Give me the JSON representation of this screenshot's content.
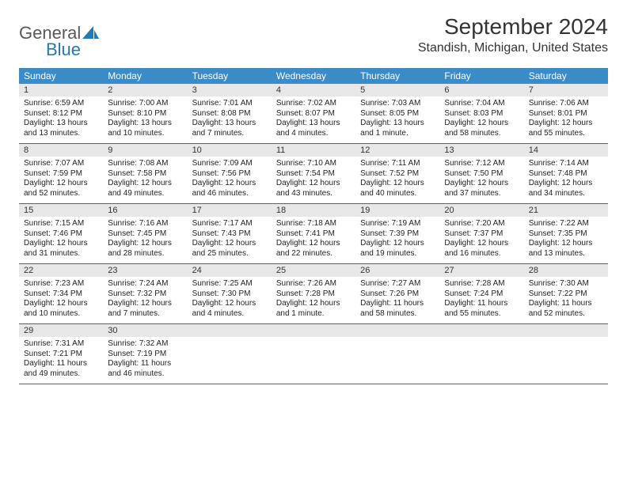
{
  "logo": {
    "word1": "General",
    "word2": "Blue"
  },
  "title": "September 2024",
  "location": "Standish, Michigan, United States",
  "colors": {
    "header_bg": "#3b8bc9",
    "daynum_bg": "#e7e7e7",
    "rule": "#2f6ea0",
    "logo_gray": "#58595b",
    "logo_blue": "#2179b8"
  },
  "day_names": [
    "Sunday",
    "Monday",
    "Tuesday",
    "Wednesday",
    "Thursday",
    "Friday",
    "Saturday"
  ],
  "weeks": [
    [
      {
        "n": "1",
        "sr": "Sunrise: 6:59 AM",
        "ss": "Sunset: 8:12 PM",
        "d1": "Daylight: 13 hours",
        "d2": "and 13 minutes."
      },
      {
        "n": "2",
        "sr": "Sunrise: 7:00 AM",
        "ss": "Sunset: 8:10 PM",
        "d1": "Daylight: 13 hours",
        "d2": "and 10 minutes."
      },
      {
        "n": "3",
        "sr": "Sunrise: 7:01 AM",
        "ss": "Sunset: 8:08 PM",
        "d1": "Daylight: 13 hours",
        "d2": "and 7 minutes."
      },
      {
        "n": "4",
        "sr": "Sunrise: 7:02 AM",
        "ss": "Sunset: 8:07 PM",
        "d1": "Daylight: 13 hours",
        "d2": "and 4 minutes."
      },
      {
        "n": "5",
        "sr": "Sunrise: 7:03 AM",
        "ss": "Sunset: 8:05 PM",
        "d1": "Daylight: 13 hours",
        "d2": "and 1 minute."
      },
      {
        "n": "6",
        "sr": "Sunrise: 7:04 AM",
        "ss": "Sunset: 8:03 PM",
        "d1": "Daylight: 12 hours",
        "d2": "and 58 minutes."
      },
      {
        "n": "7",
        "sr": "Sunrise: 7:06 AM",
        "ss": "Sunset: 8:01 PM",
        "d1": "Daylight: 12 hours",
        "d2": "and 55 minutes."
      }
    ],
    [
      {
        "n": "8",
        "sr": "Sunrise: 7:07 AM",
        "ss": "Sunset: 7:59 PM",
        "d1": "Daylight: 12 hours",
        "d2": "and 52 minutes."
      },
      {
        "n": "9",
        "sr": "Sunrise: 7:08 AM",
        "ss": "Sunset: 7:58 PM",
        "d1": "Daylight: 12 hours",
        "d2": "and 49 minutes."
      },
      {
        "n": "10",
        "sr": "Sunrise: 7:09 AM",
        "ss": "Sunset: 7:56 PM",
        "d1": "Daylight: 12 hours",
        "d2": "and 46 minutes."
      },
      {
        "n": "11",
        "sr": "Sunrise: 7:10 AM",
        "ss": "Sunset: 7:54 PM",
        "d1": "Daylight: 12 hours",
        "d2": "and 43 minutes."
      },
      {
        "n": "12",
        "sr": "Sunrise: 7:11 AM",
        "ss": "Sunset: 7:52 PM",
        "d1": "Daylight: 12 hours",
        "d2": "and 40 minutes."
      },
      {
        "n": "13",
        "sr": "Sunrise: 7:12 AM",
        "ss": "Sunset: 7:50 PM",
        "d1": "Daylight: 12 hours",
        "d2": "and 37 minutes."
      },
      {
        "n": "14",
        "sr": "Sunrise: 7:14 AM",
        "ss": "Sunset: 7:48 PM",
        "d1": "Daylight: 12 hours",
        "d2": "and 34 minutes."
      }
    ],
    [
      {
        "n": "15",
        "sr": "Sunrise: 7:15 AM",
        "ss": "Sunset: 7:46 PM",
        "d1": "Daylight: 12 hours",
        "d2": "and 31 minutes."
      },
      {
        "n": "16",
        "sr": "Sunrise: 7:16 AM",
        "ss": "Sunset: 7:45 PM",
        "d1": "Daylight: 12 hours",
        "d2": "and 28 minutes."
      },
      {
        "n": "17",
        "sr": "Sunrise: 7:17 AM",
        "ss": "Sunset: 7:43 PM",
        "d1": "Daylight: 12 hours",
        "d2": "and 25 minutes."
      },
      {
        "n": "18",
        "sr": "Sunrise: 7:18 AM",
        "ss": "Sunset: 7:41 PM",
        "d1": "Daylight: 12 hours",
        "d2": "and 22 minutes."
      },
      {
        "n": "19",
        "sr": "Sunrise: 7:19 AM",
        "ss": "Sunset: 7:39 PM",
        "d1": "Daylight: 12 hours",
        "d2": "and 19 minutes."
      },
      {
        "n": "20",
        "sr": "Sunrise: 7:20 AM",
        "ss": "Sunset: 7:37 PM",
        "d1": "Daylight: 12 hours",
        "d2": "and 16 minutes."
      },
      {
        "n": "21",
        "sr": "Sunrise: 7:22 AM",
        "ss": "Sunset: 7:35 PM",
        "d1": "Daylight: 12 hours",
        "d2": "and 13 minutes."
      }
    ],
    [
      {
        "n": "22",
        "sr": "Sunrise: 7:23 AM",
        "ss": "Sunset: 7:34 PM",
        "d1": "Daylight: 12 hours",
        "d2": "and 10 minutes."
      },
      {
        "n": "23",
        "sr": "Sunrise: 7:24 AM",
        "ss": "Sunset: 7:32 PM",
        "d1": "Daylight: 12 hours",
        "d2": "and 7 minutes."
      },
      {
        "n": "24",
        "sr": "Sunrise: 7:25 AM",
        "ss": "Sunset: 7:30 PM",
        "d1": "Daylight: 12 hours",
        "d2": "and 4 minutes."
      },
      {
        "n": "25",
        "sr": "Sunrise: 7:26 AM",
        "ss": "Sunset: 7:28 PM",
        "d1": "Daylight: 12 hours",
        "d2": "and 1 minute."
      },
      {
        "n": "26",
        "sr": "Sunrise: 7:27 AM",
        "ss": "Sunset: 7:26 PM",
        "d1": "Daylight: 11 hours",
        "d2": "and 58 minutes."
      },
      {
        "n": "27",
        "sr": "Sunrise: 7:28 AM",
        "ss": "Sunset: 7:24 PM",
        "d1": "Daylight: 11 hours",
        "d2": "and 55 minutes."
      },
      {
        "n": "28",
        "sr": "Sunrise: 7:30 AM",
        "ss": "Sunset: 7:22 PM",
        "d1": "Daylight: 11 hours",
        "d2": "and 52 minutes."
      }
    ],
    [
      {
        "n": "29",
        "sr": "Sunrise: 7:31 AM",
        "ss": "Sunset: 7:21 PM",
        "d1": "Daylight: 11 hours",
        "d2": "and 49 minutes."
      },
      {
        "n": "30",
        "sr": "Sunrise: 7:32 AM",
        "ss": "Sunset: 7:19 PM",
        "d1": "Daylight: 11 hours",
        "d2": "and 46 minutes."
      },
      {
        "n": "",
        "sr": "",
        "ss": "",
        "d1": "",
        "d2": ""
      },
      {
        "n": "",
        "sr": "",
        "ss": "",
        "d1": "",
        "d2": ""
      },
      {
        "n": "",
        "sr": "",
        "ss": "",
        "d1": "",
        "d2": ""
      },
      {
        "n": "",
        "sr": "",
        "ss": "",
        "d1": "",
        "d2": ""
      },
      {
        "n": "",
        "sr": "",
        "ss": "",
        "d1": "",
        "d2": ""
      }
    ]
  ]
}
